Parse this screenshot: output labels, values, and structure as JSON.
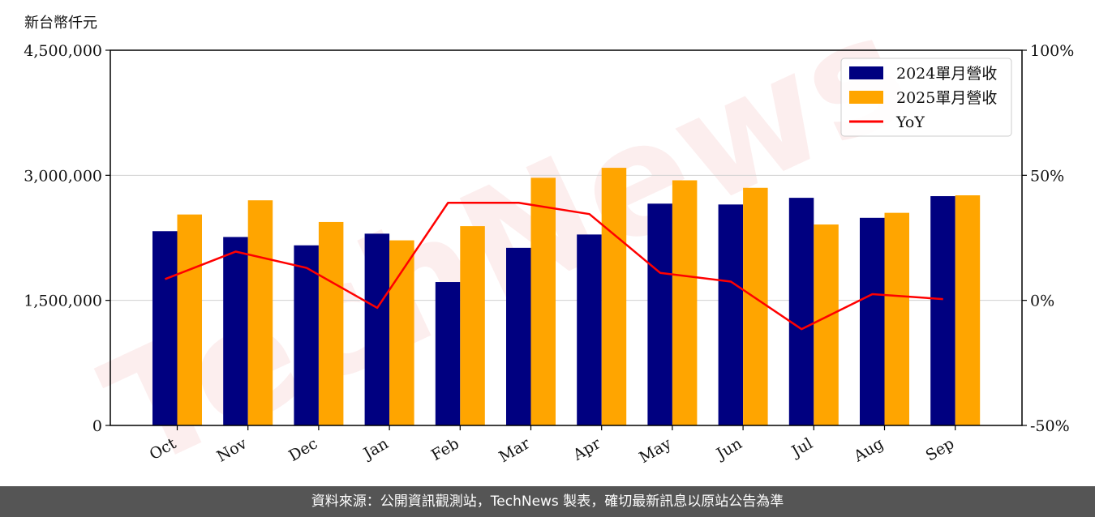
{
  "unit_label": "新台幣仟元",
  "watermark": "TechNews",
  "footer": "資料來源：公開資訊觀測站，TechNews 製表，確切最新訊息以原站公告為準",
  "colors": {
    "s2024": "#000080",
    "s2025": "#FFA500",
    "yoy": "#FF0000"
  },
  "chart_data": {
    "type": "bar",
    "categories": [
      "Oct",
      "Nov",
      "Dec",
      "Jan",
      "Feb",
      "Mar",
      "Apr",
      "May",
      "Jun",
      "Jul",
      "Aug",
      "Sep"
    ],
    "series": [
      {
        "name": "2024單月營收",
        "values": [
          2330000,
          2260000,
          2160000,
          2300000,
          1720000,
          2130000,
          2290000,
          2660000,
          2650000,
          2730000,
          2490000,
          2750000
        ]
      },
      {
        "name": "2025單月營收",
        "values": [
          2530000,
          2700000,
          2440000,
          2220000,
          2390000,
          2970000,
          3090000,
          2940000,
          2850000,
          2410000,
          2550000,
          2760000
        ]
      },
      {
        "name": "YoY",
        "type": "line",
        "axis": "right",
        "values": [
          8.5,
          19.5,
          13.0,
          -3.0,
          39.0,
          39.0,
          34.5,
          11.0,
          7.5,
          -11.5,
          2.5,
          0.5
        ]
      }
    ],
    "left_axis": {
      "ylim": [
        0,
        4500000
      ],
      "ticks": [
        "0",
        "1,500,000",
        "3,000,000",
        "4,500,000"
      ]
    },
    "right_axis": {
      "ylim": [
        -50,
        100
      ],
      "ticks": [
        "-50%",
        "0%",
        "50%",
        "100%"
      ]
    },
    "grid": true,
    "legend": "top-right"
  }
}
